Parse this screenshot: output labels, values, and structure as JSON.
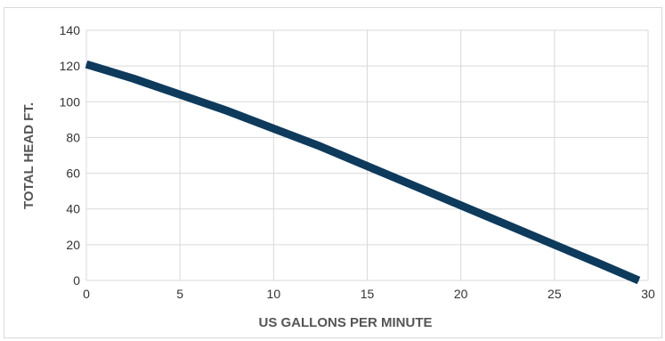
{
  "chart_data": {
    "type": "line",
    "title": "",
    "xlabel": "US GALLONS PER MINUTE",
    "ylabel": "TOTAL HEAD FT.",
    "xlim": [
      0,
      30
    ],
    "ylim": [
      0,
      140
    ],
    "x_ticks": [
      "0",
      "5",
      "10",
      "15",
      "20",
      "25",
      "30"
    ],
    "y_ticks": [
      "0",
      "20",
      "40",
      "60",
      "80",
      "100",
      "120",
      "140"
    ],
    "grid": true,
    "legend": "none",
    "series": [
      {
        "color": "#0e3a5c",
        "x": [
          0,
          2.5,
          5,
          7.5,
          10,
          12.5,
          15,
          17.5,
          20,
          22.5,
          25,
          27.5,
          29.5
        ],
        "y": [
          121,
          113,
          104,
          95,
          85,
          75,
          64,
          53,
          42,
          31,
          20,
          9,
          0
        ]
      }
    ]
  }
}
